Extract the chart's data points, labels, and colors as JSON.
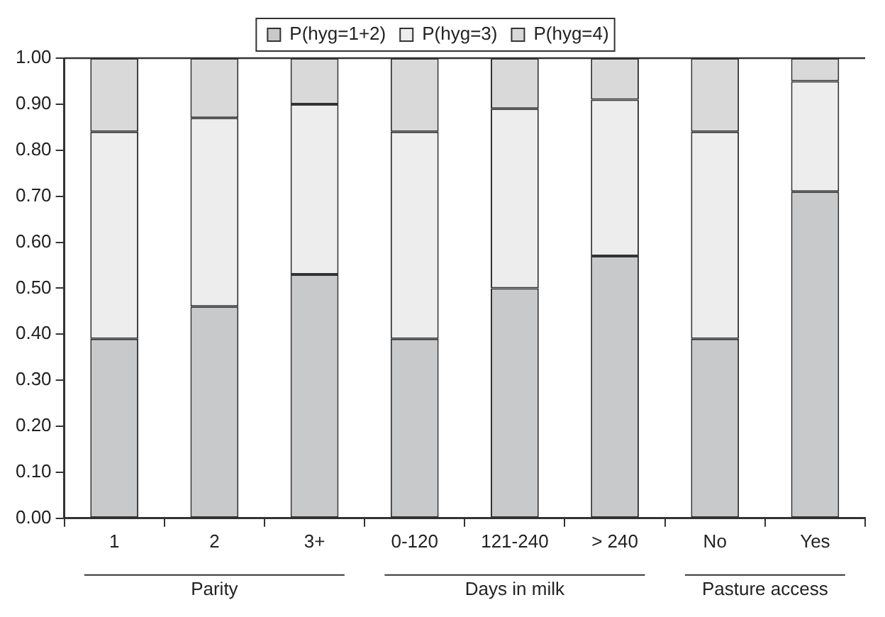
{
  "chart_data": {
    "type": "bar",
    "stacked": true,
    "categories": [
      "1",
      "2",
      "3+",
      "0-120",
      "121-240",
      "> 240",
      "No",
      "Yes"
    ],
    "series": [
      {
        "name": "P(hyg=1+2)",
        "color": "#c8c9cb",
        "values": [
          0.39,
          0.46,
          0.53,
          0.39,
          0.5,
          0.57,
          0.39,
          0.71
        ]
      },
      {
        "name": "P(hyg=3)",
        "color": "#ededed",
        "values": [
          0.45,
          0.41,
          0.37,
          0.45,
          0.39,
          0.34,
          0.45,
          0.24
        ]
      },
      {
        "name": "P(hyg=4)",
        "color": "#d9d9d9",
        "values": [
          0.16,
          0.13,
          0.1,
          0.16,
          0.11,
          0.09,
          0.16,
          0.05
        ]
      }
    ],
    "ylim": [
      0,
      1
    ],
    "yticks": [
      {
        "value": 0,
        "label": "0.00"
      },
      {
        "value": 0.1,
        "label": "0.10"
      },
      {
        "value": 0.2,
        "label": "0.20"
      },
      {
        "value": 0.3,
        "label": "0.30"
      },
      {
        "value": 0.4,
        "label": "0.40"
      },
      {
        "value": 0.5,
        "label": "0.50"
      },
      {
        "value": 0.6,
        "label": "0.60"
      },
      {
        "value": 0.7,
        "label": "0.70"
      },
      {
        "value": 0.8,
        "label": "0.80"
      },
      {
        "value": 0.9,
        "label": "0.90"
      },
      {
        "value": 1,
        "label": "1.00"
      }
    ],
    "grid": false,
    "legend": "top",
    "annotations": [
      "Parity",
      "Days in milk",
      "Pasture access"
    ]
  }
}
